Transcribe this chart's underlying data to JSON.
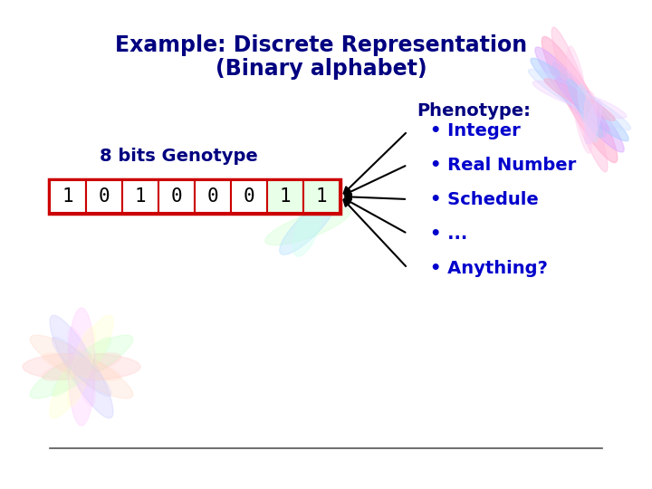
{
  "title_line1": "Example: Discrete Representation",
  "title_line2": "(Binary alphabet)",
  "title_color": "#000080",
  "title_fontsize": 17,
  "genotype_label": "8 bits Genotype",
  "genotype_label_color": "#000080",
  "genotype_label_fontsize": 14,
  "bits": [
    "1",
    "0",
    "1",
    "0",
    "0",
    "0",
    "1",
    "1"
  ],
  "bit_text_color": "#000000",
  "bit_fontsize": 15,
  "phenotype_label": "Phenotype:",
  "phenotype_label_color": "#000080",
  "phenotype_label_fontsize": 14,
  "phenotype_items": [
    "Integer",
    "Real Number",
    "Schedule",
    "...",
    "Anything?"
  ],
  "phenotype_item_color": "#0000cc",
  "phenotype_fontsize": 14,
  "arrow_color": "#000000",
  "bottom_line_color": "#555555",
  "background_color": "#ffffff",
  "swirl_tr_colors": [
    "#ffaacc",
    "#ddaaff",
    "#aaccff",
    "#ccddff",
    "#ffccee",
    "#eeccff"
  ],
  "swirl_bl_colors": [
    "#ffcccc",
    "#ccffcc",
    "#ffffcc",
    "#ffccff",
    "#ccccff",
    "#ffddcc"
  ],
  "swirl_mid_colors": [
    "#ccffcc",
    "#aaddff",
    "#ccffee"
  ]
}
